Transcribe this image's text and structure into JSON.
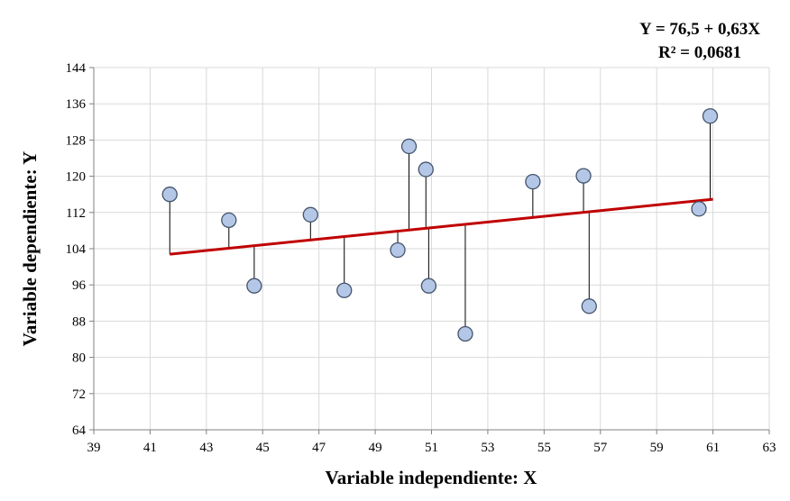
{
  "chart_data": {
    "type": "scatter",
    "title": "",
    "equation": "Y = 76,5 + 0,63X",
    "r_squared": "R² = 0,0681",
    "xlabel": "Variable independiente: X",
    "ylabel": "Variable dependiente:  Y",
    "xlim": [
      39,
      63
    ],
    "ylim": [
      64,
      144
    ],
    "xticks": [
      "39",
      "41",
      "43",
      "45",
      "47",
      "49",
      "51",
      "53",
      "55",
      "57",
      "59",
      "61",
      "63"
    ],
    "yticks": [
      "64",
      "72",
      "80",
      "88",
      "96",
      "104",
      "112",
      "120",
      "128",
      "136",
      "144"
    ],
    "grid": true,
    "regression": {
      "intercept": 76.5,
      "slope": 0.63,
      "x_range": [
        41.7,
        61.0
      ],
      "color": "#c00000"
    },
    "points": [
      {
        "x": 41.7,
        "y": 116.0
      },
      {
        "x": 43.8,
        "y": 110.3
      },
      {
        "x": 44.7,
        "y": 95.8
      },
      {
        "x": 46.7,
        "y": 111.5
      },
      {
        "x": 47.9,
        "y": 94.8
      },
      {
        "x": 49.8,
        "y": 103.7
      },
      {
        "x": 50.2,
        "y": 126.6
      },
      {
        "x": 50.8,
        "y": 121.5
      },
      {
        "x": 50.9,
        "y": 95.8
      },
      {
        "x": 52.2,
        "y": 85.2
      },
      {
        "x": 54.6,
        "y": 118.8
      },
      {
        "x": 56.4,
        "y": 120.1
      },
      {
        "x": 56.6,
        "y": 91.3
      },
      {
        "x": 60.5,
        "y": 112.8
      },
      {
        "x": 60.9,
        "y": 133.3
      }
    ],
    "marker_fill": "#b4c7e7",
    "marker_stroke": "#44546a"
  }
}
